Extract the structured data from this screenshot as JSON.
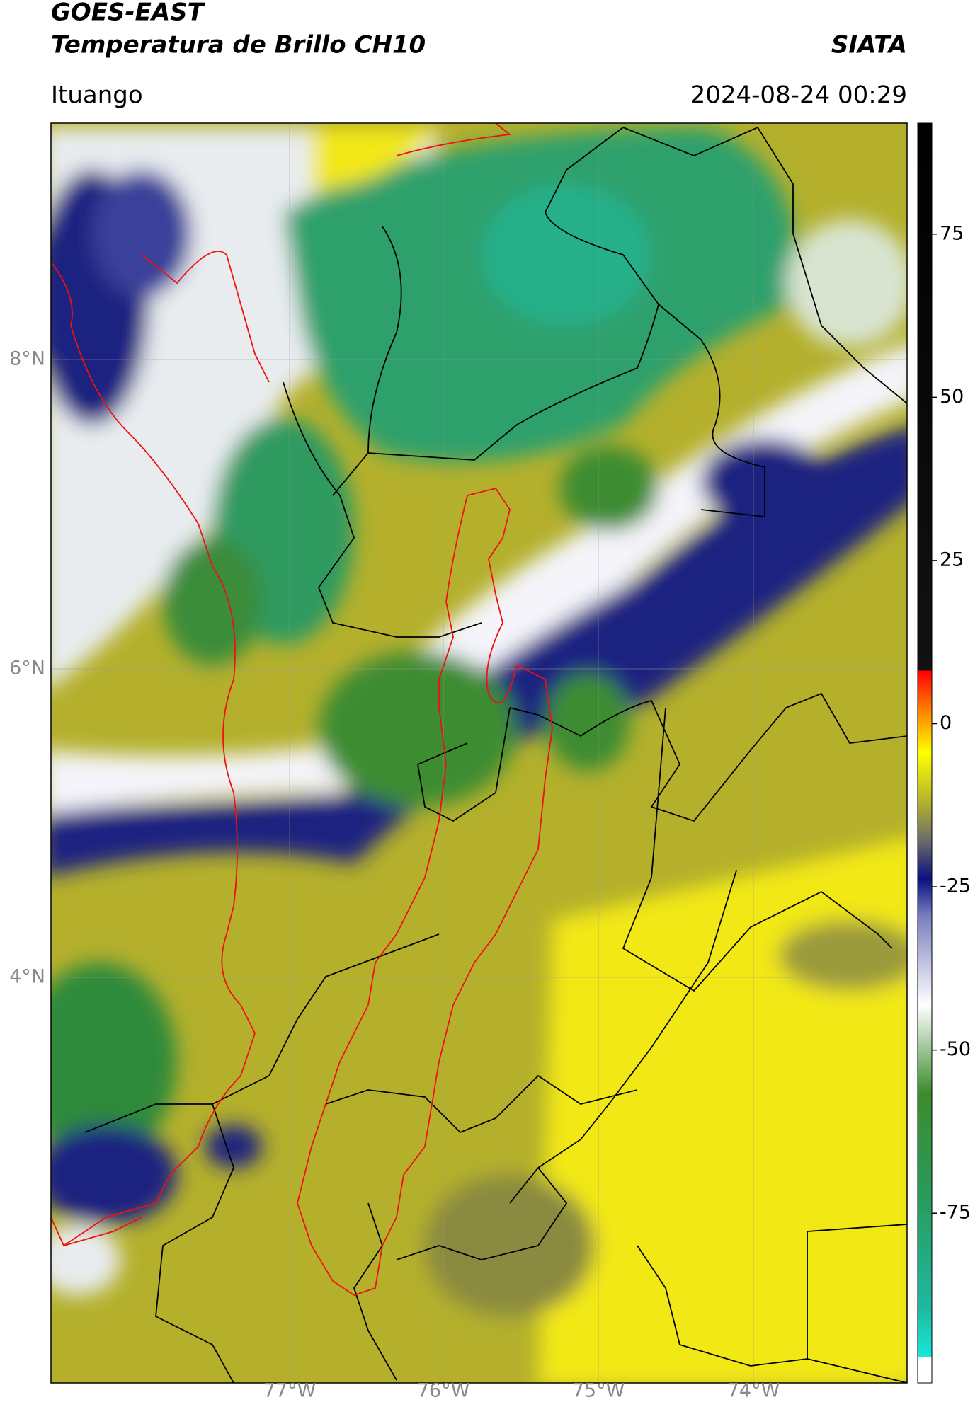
{
  "header": {
    "satellite": "GOES-EAST",
    "product": "Temperatura de Brillo CH10",
    "source": "SIATA",
    "region": "Ituango",
    "datetime": "2024-08-24 00:29"
  },
  "map": {
    "lat_labels": [
      "8°N",
      "6°N",
      "4°N"
    ],
    "lon_labels": [
      "77°W",
      "76°W",
      "75°W",
      "74°W"
    ]
  },
  "colorbar": {
    "range": [
      -101,
      92
    ],
    "ticks": [
      75,
      50,
      25,
      0,
      -25,
      -50,
      -75
    ]
  }
}
